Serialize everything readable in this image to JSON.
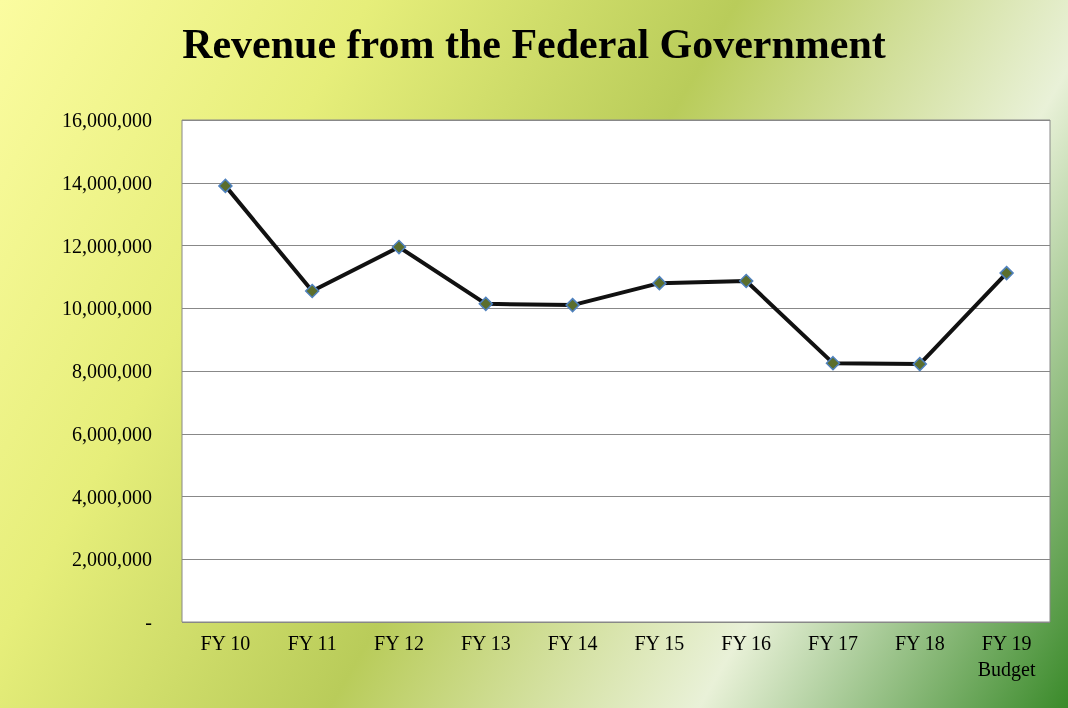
{
  "chart_data": {
    "type": "line",
    "title": "Revenue from the Federal Government",
    "categories": [
      "FY 10",
      "FY 11",
      "FY 12",
      "FY 13",
      "FY 14",
      "FY 15",
      "FY 16",
      "FY 17",
      "FY 18",
      "FY 19\nBudget"
    ],
    "series": [
      {
        "color": "#5b6e2c",
        "values": [
          13900000,
          10550000,
          11950000,
          10140000,
          10100000,
          10800000,
          10870000,
          8250000,
          8220000,
          11120000
        ]
      }
    ],
    "ylim": [
      0,
      16000000
    ],
    "yticks": [
      {
        "value": 0,
        "label": "-"
      },
      {
        "value": 2000000,
        "label": "2,000,000"
      },
      {
        "value": 4000000,
        "label": "4,000,000"
      },
      {
        "value": 6000000,
        "label": "6,000,000"
      },
      {
        "value": 8000000,
        "label": "8,000,000"
      },
      {
        "value": 10000000,
        "label": "10,000,000"
      },
      {
        "value": 12000000,
        "label": "12,000,000"
      },
      {
        "value": 14000000,
        "label": "14,000,000"
      },
      {
        "value": 16000000,
        "label": "16,000,000"
      }
    ],
    "grid": "y",
    "marker": "diamond",
    "line_style": "solid"
  }
}
